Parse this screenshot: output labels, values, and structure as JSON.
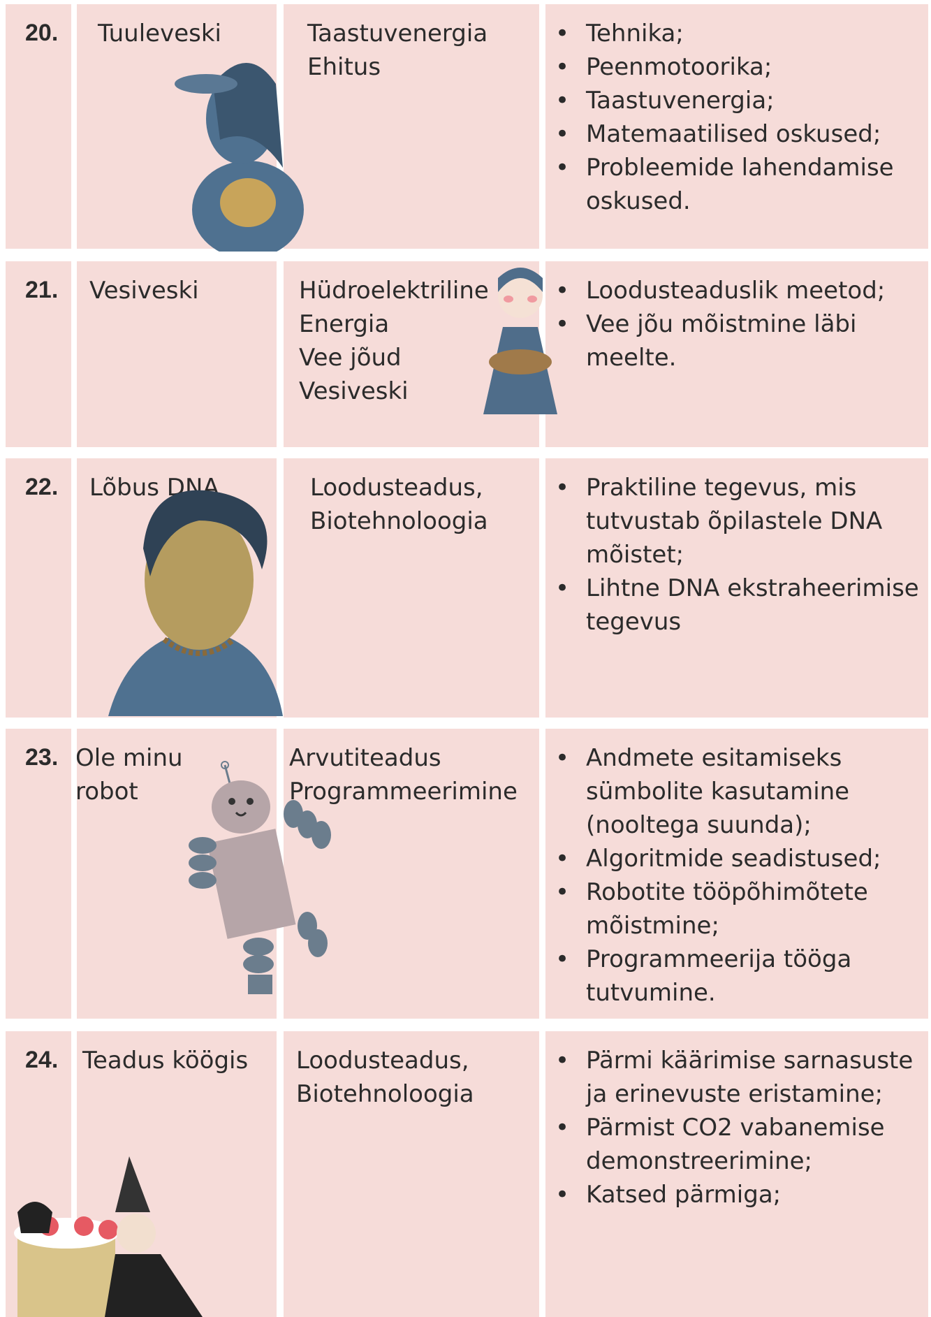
{
  "table": {
    "rows": [
      {
        "number": "20.",
        "title": "Tuuleveski",
        "subject": [
          "Taastuvenergia",
          "Ehitus"
        ],
        "bullets": [
          "Tehnika;",
          "Peenmotoorika;",
          "Taastuvenergia;",
          "Matemaatilised oskused;",
          "Probleemide lahendamise oskused."
        ]
      },
      {
        "number": "21.",
        "title": "Vesiveski",
        "subject": [
          "Hüdroelektriline",
          "Energia",
          "Vee jõud",
          "Vesiveski"
        ],
        "bullets": [
          "Loodusteaduslik meetod;",
          "Vee jõu mõistmine läbi meelte."
        ]
      },
      {
        "number": "22.",
        "title": "Lõbus DNA",
        "subject": [
          "Loodusteadus,",
          "Biotehnoloogia"
        ],
        "bullets": [
          "Praktiline tegevus, mis tutvustab õpilastele DNA mõistet;",
          "Lihtne DNA ekstraheerimise tegevus"
        ]
      },
      {
        "number": "23.",
        "title": "Ole minu robot",
        "subject": [
          "Arvutiteadus",
          "Programmeerimine"
        ],
        "bullets": [
          "Andmete esitamiseks sümbolite kasutamine (nooltega suunda);",
          "Algoritmide seadistused;",
          "Robotite tööpõhimõtete mõistmine;",
          "Programmeerija tööga tutvumine."
        ]
      },
      {
        "number": "24.",
        "title": "Teadus köögis",
        "subject": [
          "Loodusteadus,",
          "Biotehnoloogia"
        ],
        "bullets": [
          "Pärmi käärimise sarnasuste ja erinevuste eristamine;",
          "Pärmist CO2 vabanemise demonstreerimine;",
          "Katsed pärmiga;"
        ]
      }
    ]
  }
}
